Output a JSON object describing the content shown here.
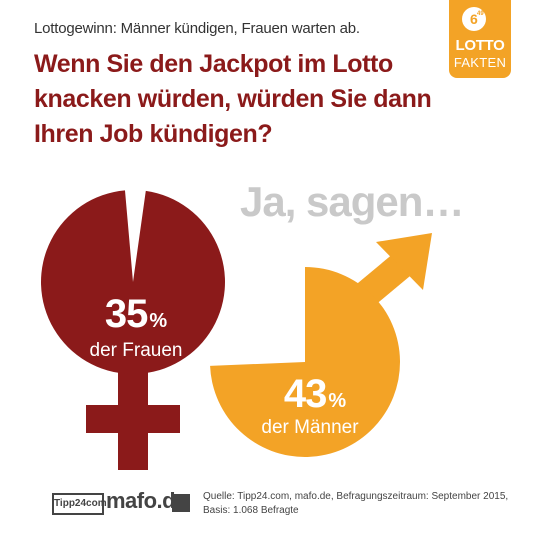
{
  "subtitle": "Lottogewinn: Männer kündigen, Frauen warten ab.",
  "headline": "Wenn Sie den Jackpot im Lotto knacken würden, würden Sie dann Ihren Job kündigen?",
  "badge": {
    "ball_number": "6",
    "ball_small": "49",
    "word1": "LOTTO",
    "word2": "FAKTEN"
  },
  "lead_in": "Ja, sagen…",
  "chart_data": {
    "type": "pie",
    "series": [
      {
        "name": "der Frauen",
        "value": 35,
        "unit": "%"
      },
      {
        "name": "der Männer",
        "value": 43,
        "unit": "%"
      }
    ],
    "colors": {
      "frauen": "#8b1a1a",
      "maenner": "#f3a326"
    }
  },
  "labels": {
    "frauen_value": "35",
    "frauen_unit": "%",
    "frauen_desc": "der Frauen",
    "maenner_value": "43",
    "maenner_unit": "%",
    "maenner_desc": "der Männer"
  },
  "footer": {
    "logo1": "Tipp24com",
    "logo2": "mafo.de",
    "source_line1": "Quelle: Tipp24.com, mafo.de, Befragungszeitraum: September 2015,",
    "source_line2": "Basis: 1.068 Befragte"
  }
}
